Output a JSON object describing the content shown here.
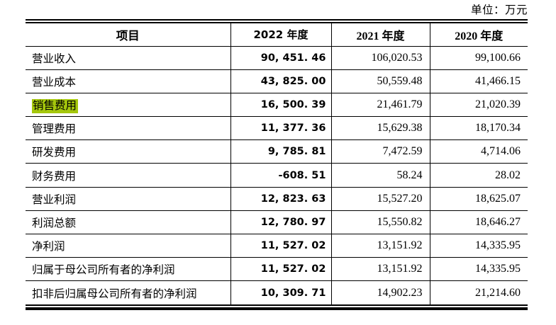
{
  "unit_label": "单位：万元",
  "colors": {
    "highlight": "#a5c70c",
    "text": "#000000",
    "border": "#000000",
    "background": "#ffffff"
  },
  "table": {
    "columns": [
      "项目",
      "2022 年度",
      "2021 年度",
      "2020 年度"
    ],
    "rows": [
      {
        "label": "营业收入",
        "y2022": "90, 451. 46",
        "y2021": "106,020.53",
        "y2020": "99,100.66",
        "highlight": false
      },
      {
        "label": "营业成本",
        "y2022": "43, 825. 00",
        "y2021": "50,559.48",
        "y2020": "41,466.15",
        "highlight": false
      },
      {
        "label": "销售费用",
        "y2022": "16, 500. 39",
        "y2021": "21,461.79",
        "y2020": "21,020.39",
        "highlight": true
      },
      {
        "label": "管理费用",
        "y2022": "11, 377. 36",
        "y2021": "15,629.38",
        "y2020": "18,170.34",
        "highlight": false
      },
      {
        "label": "研发费用",
        "y2022": "9, 785. 81",
        "y2021": "7,472.59",
        "y2020": "4,714.06",
        "highlight": false
      },
      {
        "label": "财务费用",
        "y2022": "-608. 51",
        "y2021": "58.24",
        "y2020": "28.02",
        "highlight": false
      },
      {
        "label": "营业利润",
        "y2022": "12, 823. 63",
        "y2021": "15,527.20",
        "y2020": "18,625.07",
        "highlight": false
      },
      {
        "label": "利润总额",
        "y2022": "12, 780. 97",
        "y2021": "15,550.82",
        "y2020": "18,646.27",
        "highlight": false
      },
      {
        "label": "净利润",
        "y2022": "11, 527. 02",
        "y2021": "13,151.92",
        "y2020": "14,335.95",
        "highlight": false
      },
      {
        "label": "归属于母公司所有者的净利润",
        "y2022": "11, 527. 02",
        "y2021": "13,151.92",
        "y2020": "14,335.95",
        "highlight": false
      },
      {
        "label": "扣非后归属母公司所有者的净利润",
        "y2022": "10, 309. 71",
        "y2021": "14,902.23",
        "y2020": "21,214.60",
        "highlight": false
      }
    ]
  }
}
